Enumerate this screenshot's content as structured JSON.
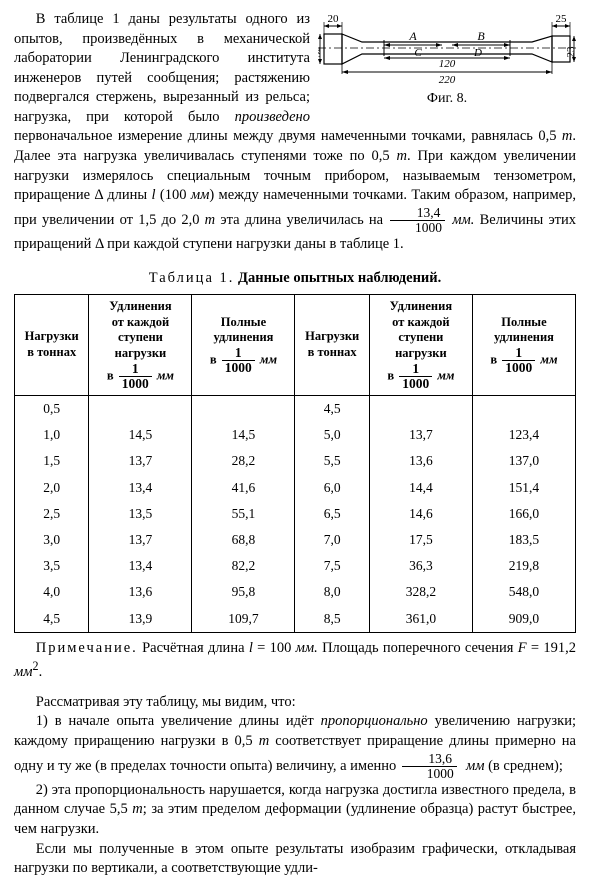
{
  "para1a": "В таблице 1 даны результаты одного из опытов, произведённых в механической лаборатории Ленинградского института инженеров путей сообщения; растяжению подвергался стержень, вырезанный из рельса; нагрузка, при которой было",
  "para1b_i": "произведено",
  "para1b": " первоначальное изме­рение длины между двумя наме­ченными точками, равнялась 0,5 ",
  "para1c_i": "т",
  "para1c": ". Далее эта нагрузка увеличивалась ступенями тоже по 0,5 ",
  "para1d_i": "т",
  "para1d": ". При каждом увеличении нагрузки изме­рялось специальным точным при­бором, называемым тензометром, приращение Δ длины ",
  "para1e_i": "l",
  "para1e": " (100 ",
  "para1f_i": "мм",
  "para1f": ") между намеченными точками. Таким образом, например, при увеличении от 1,5 до 2,0 ",
  "para1g_i": "т",
  "para1g": " эта длина увеличилась на ",
  "para1h_i": "мм.",
  "para1h": " Величины этих при­ращений Δ при каждой ступени нагрузки даны в таблице 1.",
  "frac1_num": "13,4",
  "frac1_den": "1000",
  "fig_caption": "Фиг. 8.",
  "fig": {
    "d20": "20",
    "d25": "25",
    "d32": "32",
    "d23": "23",
    "A": "A",
    "B": "B",
    "C": "C",
    "D": "D",
    "l120": "120",
    "l220": "220"
  },
  "table_title_a": "Таблица 1.",
  "table_title_b": "Данные опытных наблюдений.",
  "th_load_a": "Нагрузки",
  "th_load_b": "в тоннах",
  "th_inc_a": "Удлинения",
  "th_inc_b": "от каждой",
  "th_inc_c": "ступени",
  "th_inc_d": "нагрузки",
  "th_inc_e_pre": "в ",
  "th_inc_e_post": " мм",
  "th_tot_a": "Полные",
  "th_tot_b": "удлинения",
  "frac_th_num": "1",
  "frac_th_den": "1000",
  "rows_left": [
    [
      "0,5",
      "",
      ""
    ],
    [
      "1,0",
      "14,5",
      "14,5"
    ],
    [
      "1,5",
      "13,7",
      "28,2"
    ],
    [
      "2,0",
      "13,4",
      "41,6"
    ],
    [
      "2,5",
      "13,5",
      "55,1"
    ],
    [
      "3,0",
      "13,7",
      "68,8"
    ],
    [
      "3,5",
      "13,4",
      "82,2"
    ],
    [
      "4,0",
      "13,6",
      "95,8"
    ],
    [
      "4,5",
      "13,9",
      "109,7"
    ]
  ],
  "rows_right": [
    [
      "4,5",
      "",
      ""
    ],
    [
      "5,0",
      "13,7",
      "123,4"
    ],
    [
      "5,5",
      "13,6",
      "137,0"
    ],
    [
      "6,0",
      "14,4",
      "151,4"
    ],
    [
      "6,5",
      "14,6",
      "166,0"
    ],
    [
      "7,0",
      "17,5",
      "183,5"
    ],
    [
      "7,5",
      "36,3",
      "219,8"
    ],
    [
      "8,0",
      "328,2",
      "548,0"
    ],
    [
      "8,5",
      "361,0",
      "909,0"
    ]
  ],
  "note_a": "Примечание.",
  "note_b": " Расчётная длина ",
  "note_c_i": "l",
  "note_c": " = 100 ",
  "note_d_i": "мм.",
  "note_e": " Площадь поперечного сечения ",
  "note_f_i": "F",
  "note_f": " = 191,2 ",
  "note_g_i": "мм",
  "note_g_sup": "2",
  "note_g": ".",
  "p2": "Рассматривая эту таблицу, мы видим, что:",
  "p3a": "1) в начале опыта увеличение длины идёт ",
  "p3b_i": "пропорционально",
  "p3b": " уве­личению нагрузки; каждому приращению нагрузки в 0,5 ",
  "p3c_i": "т",
  "p3c": " соответ­ствует приращение длины примерно на одну и ту же (в пределах точности опыта) величину, а именно ",
  "p3d_i": "мм",
  "p3d": " (в среднем);",
  "frac2_num": "13,6",
  "frac2_den": "1000",
  "p4a": "2) эта пропорциональность нарушается, когда нагрузка достигла известного предела, в данном случае 5,5 ",
  "p4b_i": "т",
  "p4b": "; за этим пределом де­формации (удлинение образца) растут быстрее, чем нагрузки.",
  "p5": "Если мы полученные в этом опыте результаты изобразим графи­чески, откладывая нагрузки по вертикали, а соответствующие удли-"
}
